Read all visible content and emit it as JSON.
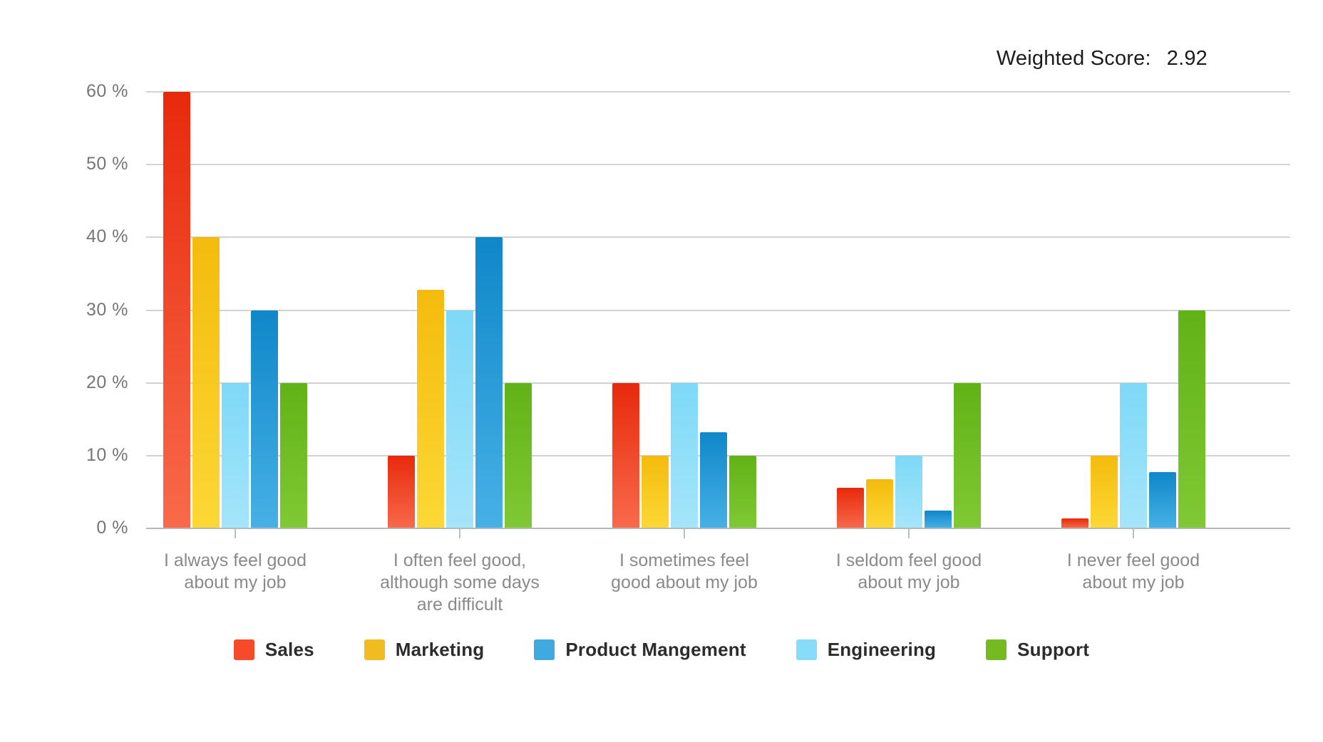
{
  "header": {
    "weighted_score_label": "Weighted Score:",
    "weighted_score_value": "2.92"
  },
  "chart_data": {
    "type": "bar",
    "title": "",
    "xlabel": "",
    "ylabel": "",
    "ylim": [
      0,
      60
    ],
    "grid": true,
    "legend_position": "bottom",
    "y_axis": {
      "min": 0,
      "max": 60,
      "step": 10,
      "tick_labels": [
        "0 %",
        "10 %",
        "20 %",
        "30 %",
        "40 %",
        "50 %",
        "60 %"
      ]
    },
    "categories": [
      [
        "I always feel good",
        "about my job"
      ],
      [
        "I often feel good,",
        "although some days",
        "are difficult"
      ],
      [
        "I sometimes feel",
        "good about my job"
      ],
      [
        "I seldom feel good",
        "about my job"
      ],
      [
        "I never feel good",
        "about my job"
      ]
    ],
    "bar_order": [
      "Sales",
      "Marketing",
      "Engineering",
      "Product Mangement",
      "Support"
    ],
    "series": [
      {
        "name": "Sales",
        "values": [
          60,
          10,
          20,
          5.6,
          1.4
        ],
        "gradient_top": "#e8290c",
        "gradient_bottom": "#f86a4b",
        "legend_color": "#f74a2b"
      },
      {
        "name": "Marketing",
        "values": [
          40,
          32.8,
          10,
          6.8,
          10
        ],
        "gradient_top": "#f4bb0d",
        "gradient_bottom": "#fdd835",
        "legend_color": "#f0bc20"
      },
      {
        "name": "Product Mangement",
        "values": [
          30,
          40,
          13.2,
          2.5,
          7.7
        ],
        "gradient_top": "#0f87c9",
        "gradient_bottom": "#47b1e6",
        "legend_color": "#3fa9e0"
      },
      {
        "name": "Engineering",
        "values": [
          20,
          30,
          20,
          10,
          20
        ],
        "gradient_top": "#7ed9f7",
        "gradient_bottom": "#a5e5fb",
        "legend_color": "#87ddf9"
      },
      {
        "name": "Support",
        "values": [
          20,
          20,
          10,
          20,
          30
        ],
        "gradient_top": "#61b217",
        "gradient_bottom": "#80c934",
        "legend_color": "#76ba22"
      }
    ]
  }
}
